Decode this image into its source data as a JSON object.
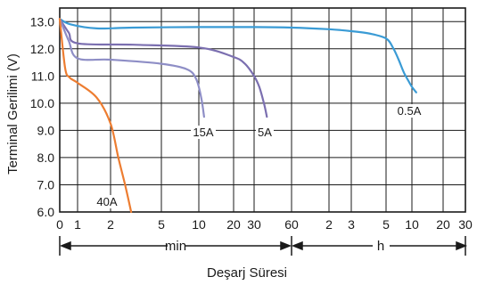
{
  "chart_data": {
    "type": "line",
    "title": "",
    "xlabel": "Deşarj Süresi",
    "ylabel": "Terminal Gerilimi (V)",
    "ylim": [
      6.0,
      13.5
    ],
    "y_ticks": [
      "6.0",
      "7.0",
      "8.0",
      "9.0",
      "10.0",
      "11.0",
      "12.0",
      "13.0"
    ],
    "x_ticks": [
      "0",
      "1",
      "2",
      "5",
      "10",
      "20",
      "30",
      "60",
      "2",
      "3",
      "5",
      "10",
      "20",
      "30"
    ],
    "x_range_labels": {
      "minutes": "min",
      "hours": "h"
    },
    "x_axis_note": "logarithmic-style axis: 0–60 minutes then 1–30 hours",
    "grid": true,
    "legend": "inline labels at curve ends",
    "series": [
      {
        "name": "0.5A",
        "color": "#3a9bd5",
        "x_minutes": [
          0,
          0.6,
          1.5,
          3,
          10,
          30,
          60,
          120,
          180,
          240,
          300,
          360,
          420,
          480,
          540,
          600,
          660
        ],
        "y": [
          13.1,
          12.9,
          12.75,
          12.78,
          12.8,
          12.8,
          12.78,
          12.72,
          12.65,
          12.55,
          12.38,
          12.05,
          11.6,
          11.15,
          10.85,
          10.6,
          10.4
        ]
      },
      {
        "name": "5A",
        "color": "#7b6fb0",
        "x_minutes": [
          0,
          0.5,
          1,
          3,
          10,
          20,
          25,
          30,
          33,
          36,
          38
        ],
        "y": [
          13.1,
          12.6,
          12.2,
          12.15,
          12.05,
          11.7,
          11.45,
          11.0,
          10.6,
          10.0,
          9.5
        ]
      },
      {
        "name": "15A",
        "color": "#8e8ec6",
        "x_minutes": [
          0,
          0.5,
          1,
          2,
          5,
          8,
          9.5,
          10.5,
          11.1
        ],
        "y": [
          13.1,
          12.3,
          11.65,
          11.6,
          11.45,
          11.25,
          10.9,
          10.2,
          9.5
        ]
      },
      {
        "name": "40A",
        "color": "#ed7d31",
        "x_minutes": [
          0,
          0.3,
          0.55,
          1,
          1.5,
          2,
          2.3,
          2.6,
          2.9
        ],
        "y": [
          13.1,
          11.3,
          10.95,
          10.75,
          10.2,
          9.25,
          8.0,
          7.0,
          6.0
        ]
      }
    ]
  }
}
